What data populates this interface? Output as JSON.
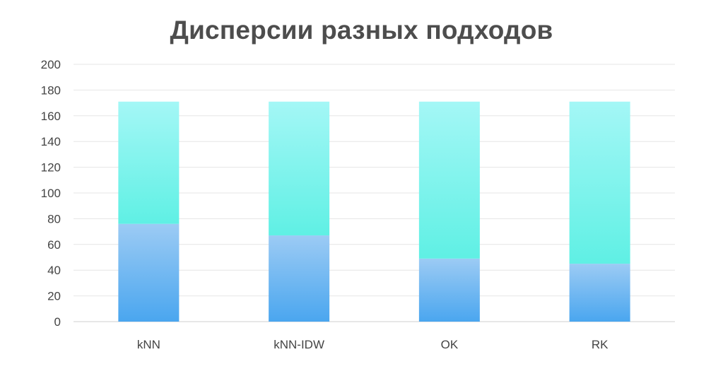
{
  "chart_data": {
    "type": "bar",
    "stacked": true,
    "title": "Дисперсии разных подходов",
    "xlabel": "",
    "ylabel": "",
    "categories": [
      "kNN",
      "kNN-IDW",
      "OK",
      "RK"
    ],
    "series": [
      {
        "values": [
          76,
          67,
          49,
          45
        ],
        "color": "#5aaaf0"
      },
      {
        "values": [
          95,
          104,
          122,
          126
        ],
        "color": "#5ff0e4"
      }
    ],
    "ylim": [
      0,
      200
    ],
    "yticks": [
      0,
      20,
      40,
      60,
      80,
      100,
      120,
      140,
      160,
      180,
      200
    ],
    "grid": true,
    "legend": "none"
  }
}
